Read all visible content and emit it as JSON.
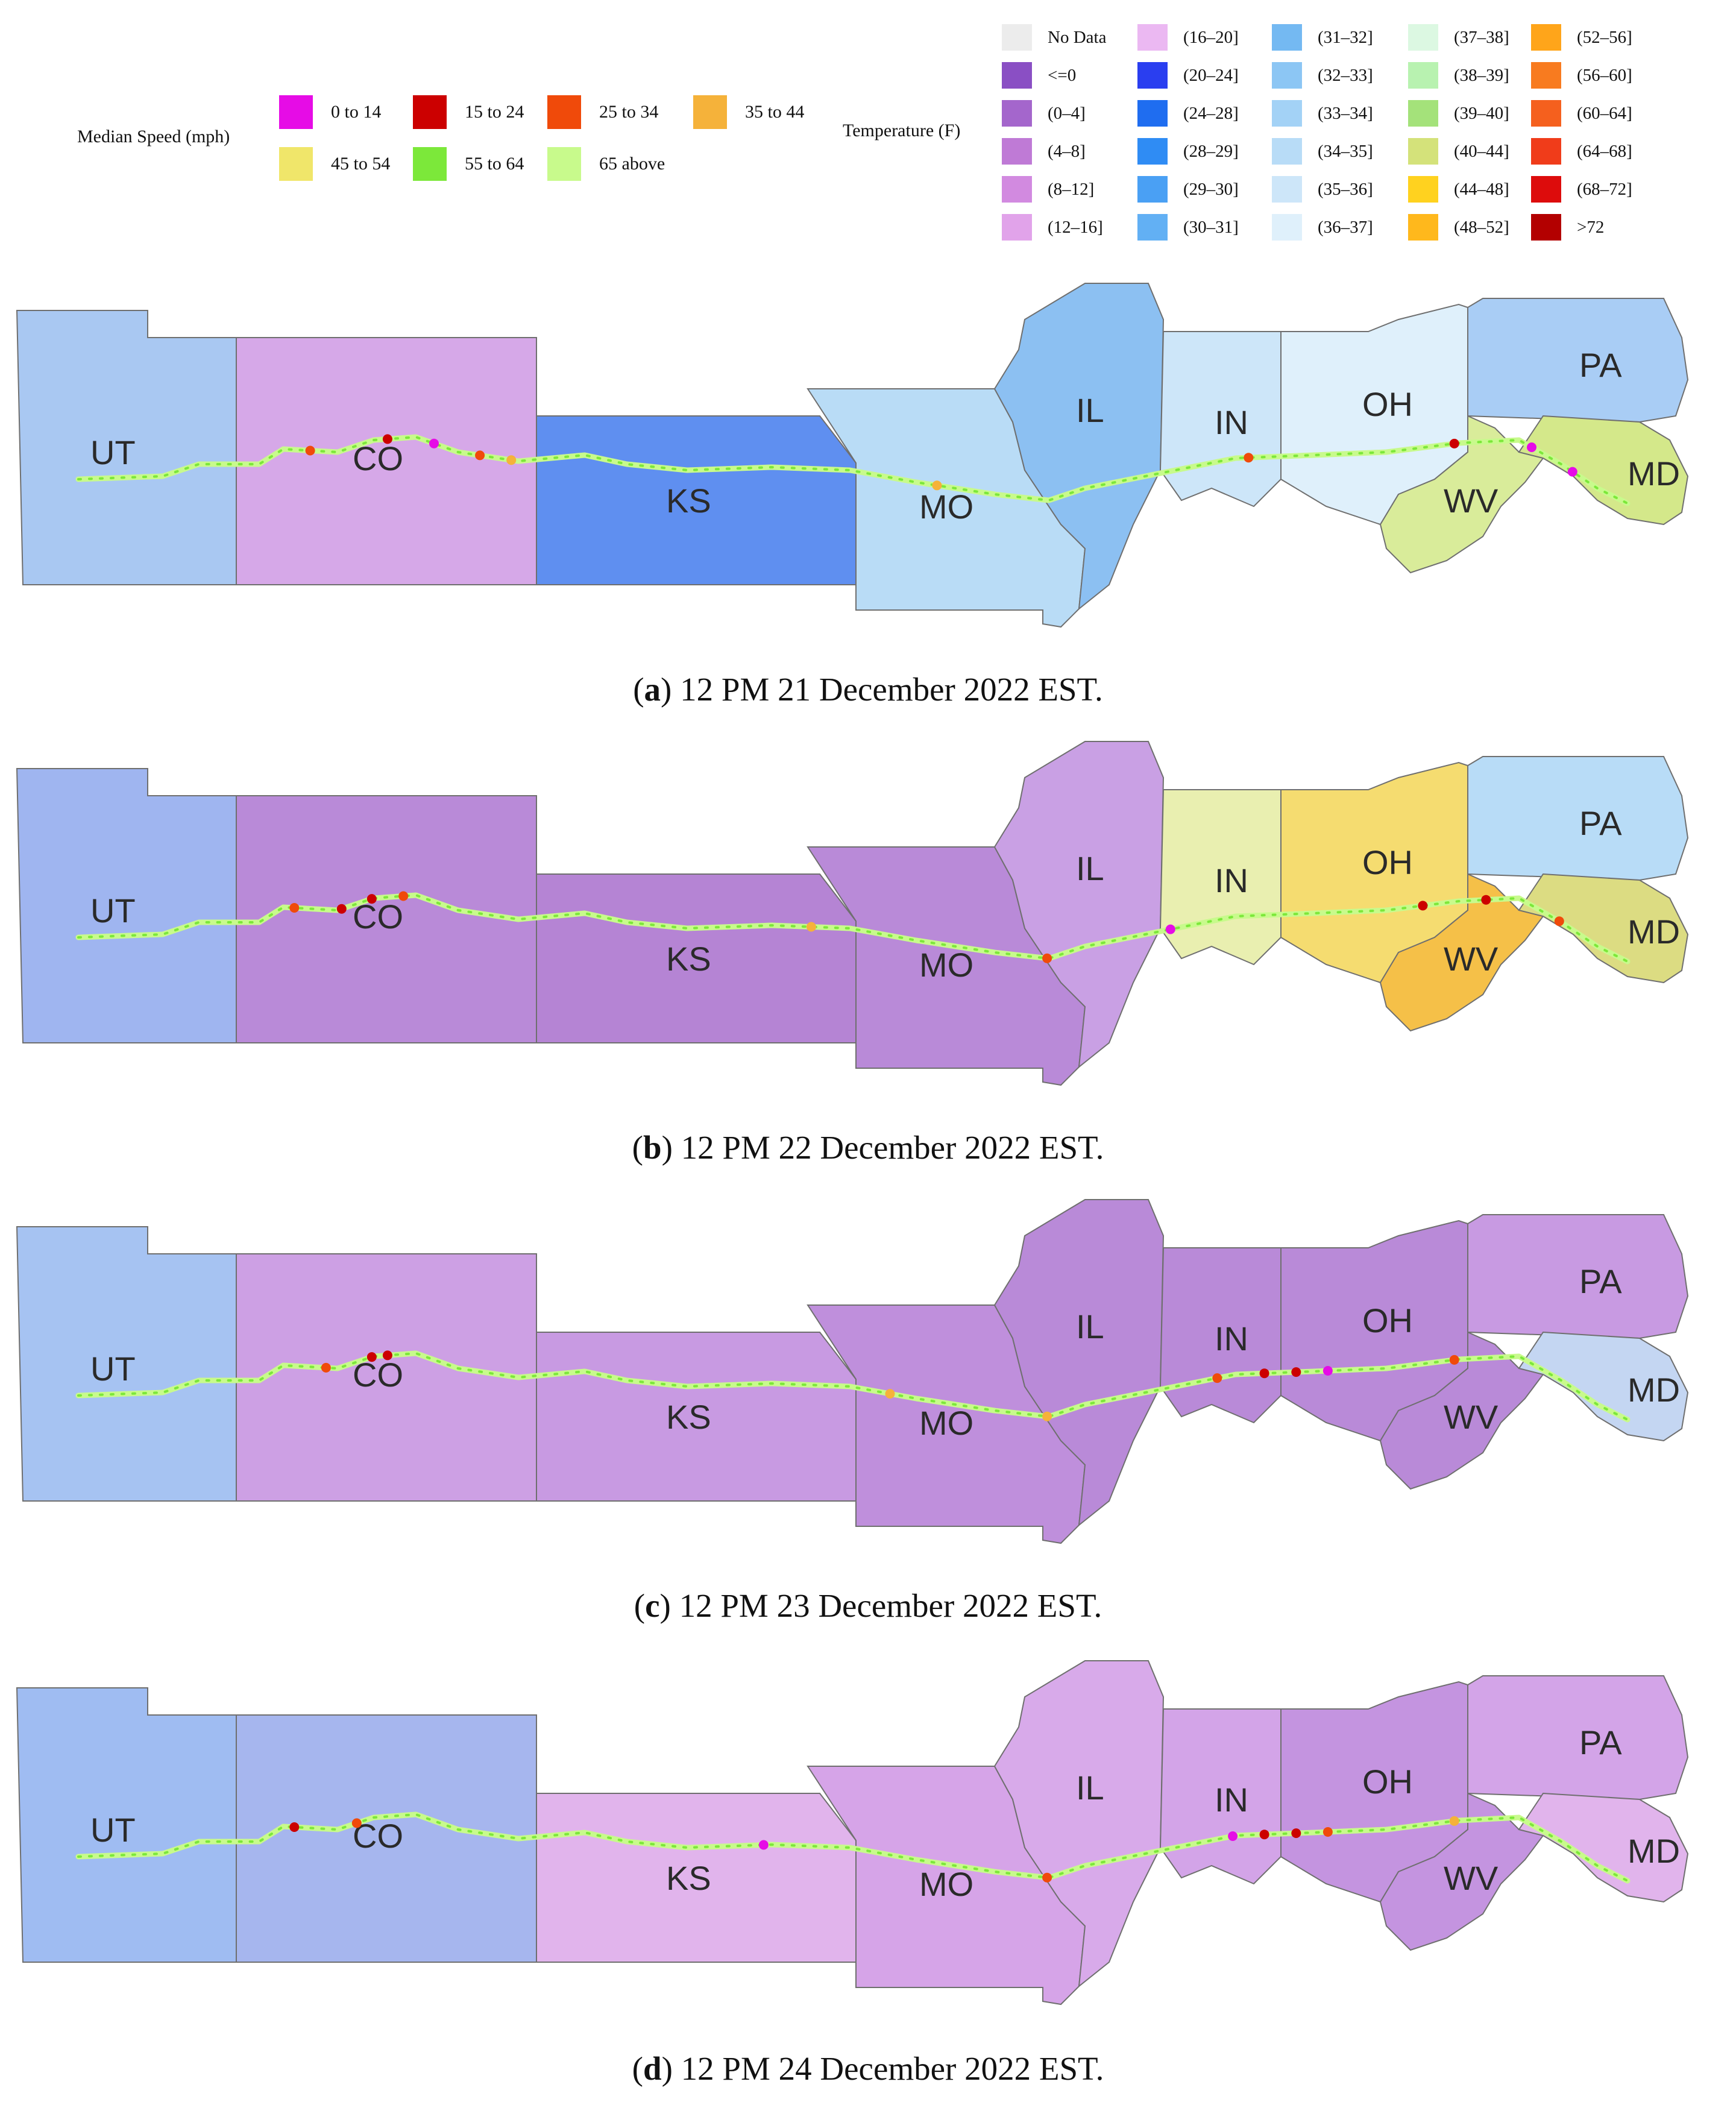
{
  "speed_legend": {
    "title": "Median Speed (mph)",
    "items": [
      {
        "label": "0 to 14",
        "color": "#e60ce6"
      },
      {
        "label": "15 to 24",
        "color": "#cc0000"
      },
      {
        "label": "25 to 34",
        "color": "#f04a0a"
      },
      {
        "label": "35 to 44",
        "color": "#f5b23a"
      },
      {
        "label": "45 to 54",
        "color": "#f0e66a"
      },
      {
        "label": "55 to 64",
        "color": "#7ce83a"
      },
      {
        "label": "65 above",
        "color": "#c8fa8c"
      }
    ]
  },
  "temp_legend": {
    "title": "Temperature (F)",
    "columns": [
      [
        {
          "label": "No Data",
          "color": "#ececec"
        },
        {
          "label": "<=0",
          "color": "#8a4fc4"
        },
        {
          "label": "(0–4]",
          "color": "#a466cc"
        },
        {
          "label": "(4–8]",
          "color": "#bf7ad6"
        },
        {
          "label": "(8–12]",
          "color": "#d28ae0"
        },
        {
          "label": "(12–16]",
          "color": "#e1a3ea"
        }
      ],
      [
        {
          "label": "(16–20]",
          "color": "#ebb8f2"
        },
        {
          "label": "(20–24]",
          "color": "#2a3ef0"
        },
        {
          "label": "(24–28]",
          "color": "#1f6df0"
        },
        {
          "label": "(28–29]",
          "color": "#2f8cf4"
        },
        {
          "label": "(29–30]",
          "color": "#4aa0f4"
        },
        {
          "label": "(30–31]",
          "color": "#62b0f4"
        }
      ],
      [
        {
          "label": "(31–32]",
          "color": "#74b9f2"
        },
        {
          "label": "(32–33]",
          "color": "#8cc6f4"
        },
        {
          "label": "(33–34]",
          "color": "#a3d2f6"
        },
        {
          "label": "(34–35]",
          "color": "#b8dcf7"
        },
        {
          "label": "(35–36]",
          "color": "#cde6f9"
        },
        {
          "label": "(36–37]",
          "color": "#dff0fb"
        }
      ],
      [
        {
          "label": "(37–38]",
          "color": "#dcf8e2"
        },
        {
          "label": "(38–39]",
          "color": "#b8f2b0"
        },
        {
          "label": "(39–40]",
          "color": "#a4e27a"
        },
        {
          "label": "(40–44]",
          "color": "#d4e27a"
        },
        {
          "label": "(44–48]",
          "color": "#ffd21f"
        },
        {
          "label": "(48–52]",
          "color": "#ffb81c"
        }
      ],
      [
        {
          "label": "(52–56]",
          "color": "#ffa51a"
        },
        {
          "label": "(56–60]",
          "color": "#f87b1f"
        },
        {
          "label": "(60–64]",
          "color": "#f5601e"
        },
        {
          "label": "(64–68]",
          "color": "#f03c1a"
        },
        {
          "label": "(68–72]",
          "color": "#dd0c0c"
        },
        {
          ">72": null,
          "label": ">72",
          "color": "#b30000"
        }
      ]
    ]
  },
  "states": [
    "UT",
    "CO",
    "KS",
    "MO",
    "IL",
    "IN",
    "OH",
    "WV",
    "PA",
    "MD"
  ],
  "panels": [
    {
      "letter": "a",
      "caption": " 12 PM 21 December 2022 EST.",
      "colors": {
        "UT": "#a9c8f2",
        "CO": "#d6a8e8",
        "KS": "#5f8ff0",
        "MO": "#b9dcf6",
        "IL": "#8cc0f2",
        "IN": "#cde6f9",
        "OH": "#dff0fb",
        "WV": "#d9ec9a",
        "PA": "#a9cdf5",
        "MD": "#d4e88a"
      }
    },
    {
      "letter": "b",
      "caption": " 12 PM 22 December 2022 EST.",
      "colors": {
        "UT": "#9fb5f0",
        "CO": "#b98ad8",
        "KS": "#b584d4",
        "MO": "#b98ad8",
        "IL": "#c9a0e4",
        "IN": "#e9efb0",
        "OH": "#f5dc70",
        "WV": "#f5c048",
        "PA": "#b8dcf7",
        "MD": "#dcdc82"
      }
    },
    {
      "letter": "c",
      "caption": " 12 PM 23 December 2022 EST.",
      "colors": {
        "UT": "#a6c3f2",
        "CO": "#cda0e4",
        "KS": "#c89ae2",
        "MO": "#bf8fdc",
        "IL": "#b98ad8",
        "IN": "#b98ad8",
        "OH": "#b98ad8",
        "WV": "#b98ad8",
        "PA": "#c89ae2",
        "MD": "#c4d6f2"
      }
    },
    {
      "letter": "d",
      "caption": " 12 PM 24 December 2022 EST.",
      "colors": {
        "UT": "#9fbcf2",
        "CO": "#a6b6ee",
        "KS": "#e1b4ec",
        "MO": "#d6a4e8",
        "IL": "#d8aaea",
        "IN": "#d3a4e8",
        "OH": "#c494e0",
        "WV": "#c494e0",
        "PA": "#d3a4e8",
        "MD": "#e1b4ec"
      }
    }
  ]
}
